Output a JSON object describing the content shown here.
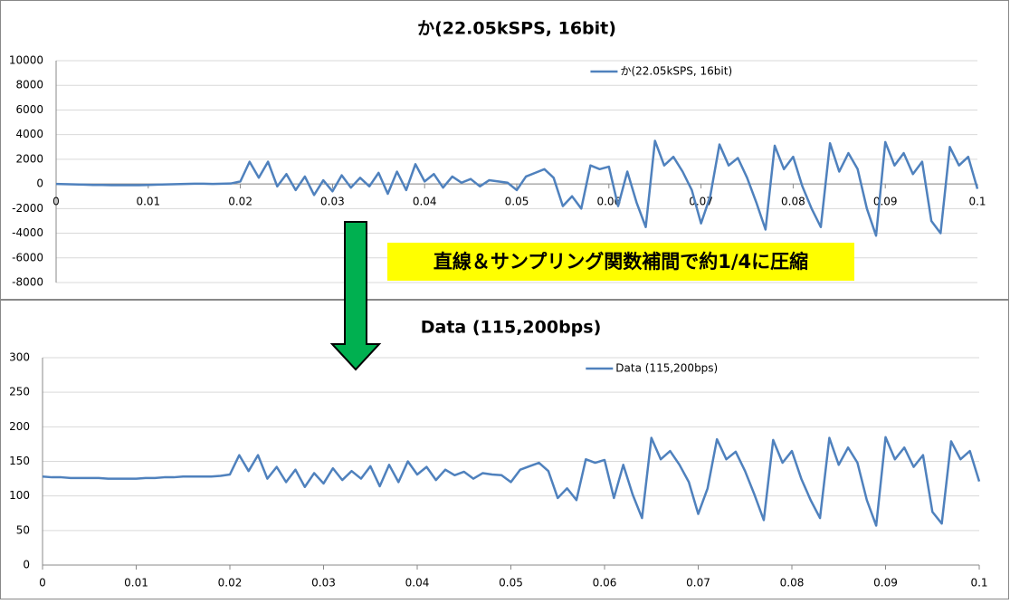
{
  "chart_data": [
    {
      "type": "line",
      "title": "か(22.05kSPS, 16bit)",
      "x": [
        0,
        0.001,
        0.002,
        0.003,
        0.004,
        0.005,
        0.006,
        0.007,
        0.008,
        0.009,
        0.01,
        0.011,
        0.012,
        0.013,
        0.014,
        0.015,
        0.016,
        0.017,
        0.018,
        0.019,
        0.02,
        0.021,
        0.022,
        0.023,
        0.024,
        0.025,
        0.026,
        0.027,
        0.028,
        0.029,
        0.03,
        0.031,
        0.032,
        0.033,
        0.034,
        0.035,
        0.036,
        0.037,
        0.038,
        0.039,
        0.04,
        0.041,
        0.042,
        0.043,
        0.044,
        0.045,
        0.046,
        0.047,
        0.048,
        0.049,
        0.05,
        0.051,
        0.052,
        0.053,
        0.054,
        0.055,
        0.056,
        0.057,
        0.058,
        0.059,
        0.06,
        0.061,
        0.062,
        0.063,
        0.064,
        0.065,
        0.066,
        0.067,
        0.068,
        0.069,
        0.07,
        0.071,
        0.072,
        0.073,
        0.074,
        0.075,
        0.076,
        0.077,
        0.078,
        0.079,
        0.08,
        0.081,
        0.082,
        0.083,
        0.084,
        0.085,
        0.086,
        0.087,
        0.088,
        0.089,
        0.09,
        0.091,
        0.092,
        0.093,
        0.094,
        0.095,
        0.096,
        0.097,
        0.098,
        0.099,
        0.1
      ],
      "series": [
        {
          "name": "か(22.05kSPS, 16bit)",
          "color": "#4f81bd",
          "values": [
            0,
            -20,
            -40,
            -60,
            -80,
            -80,
            -100,
            -100,
            -100,
            -100,
            -80,
            -60,
            -40,
            -20,
            0,
            20,
            20,
            0,
            20,
            40,
            200,
            1800,
            500,
            1800,
            -200,
            800,
            -500,
            600,
            -900,
            300,
            -600,
            700,
            -300,
            500,
            -200,
            900,
            -800,
            1000,
            -500,
            1600,
            200,
            800,
            -300,
            600,
            100,
            400,
            -200,
            300,
            200,
            100,
            -500,
            600,
            900,
            1200,
            500,
            -1800,
            -1000,
            -2000,
            1500,
            1200,
            1400,
            -1800,
            1000,
            -1500,
            -3500,
            3500,
            1500,
            2200,
            1000,
            -500,
            -3200,
            -1000,
            3200,
            1500,
            2100,
            500,
            -1500,
            -3700,
            3100,
            1200,
            2200,
            -200,
            -2000,
            -3500,
            3300,
            1000,
            2500,
            1200,
            -2000,
            -4200,
            3400,
            1500,
            2500,
            800,
            1800,
            -3000,
            -4000,
            3000,
            1500,
            2200,
            -400
          ]
        }
      ],
      "xlim": [
        0,
        0.1
      ],
      "ylim": [
        -8000,
        10000
      ],
      "xticks": [
        0,
        0.01,
        0.02,
        0.03,
        0.04,
        0.05,
        0.06,
        0.07,
        0.08,
        0.09,
        0.1
      ],
      "yticks": [
        -8000,
        -6000,
        -4000,
        -2000,
        0,
        2000,
        4000,
        6000,
        8000,
        10000
      ],
      "grid": true,
      "legend": "top"
    },
    {
      "type": "line",
      "title": "Data (115,200bps)",
      "x": [
        0,
        0.001,
        0.002,
        0.003,
        0.004,
        0.005,
        0.006,
        0.007,
        0.008,
        0.009,
        0.01,
        0.011,
        0.012,
        0.013,
        0.014,
        0.015,
        0.016,
        0.017,
        0.018,
        0.019,
        0.02,
        0.021,
        0.022,
        0.023,
        0.024,
        0.025,
        0.026,
        0.027,
        0.028,
        0.029,
        0.03,
        0.031,
        0.032,
        0.033,
        0.034,
        0.035,
        0.036,
        0.037,
        0.038,
        0.039,
        0.04,
        0.041,
        0.042,
        0.043,
        0.044,
        0.045,
        0.046,
        0.047,
        0.048,
        0.049,
        0.05,
        0.051,
        0.052,
        0.053,
        0.054,
        0.055,
        0.056,
        0.057,
        0.058,
        0.059,
        0.06,
        0.061,
        0.062,
        0.063,
        0.064,
        0.065,
        0.066,
        0.067,
        0.068,
        0.069,
        0.07,
        0.071,
        0.072,
        0.073,
        0.074,
        0.075,
        0.076,
        0.077,
        0.078,
        0.079,
        0.08,
        0.081,
        0.082,
        0.083,
        0.084,
        0.085,
        0.086,
        0.087,
        0.088,
        0.089,
        0.09,
        0.091,
        0.092,
        0.093,
        0.094,
        0.095,
        0.096,
        0.097,
        0.098,
        0.099,
        0.1
      ],
      "series": [
        {
          "name": "Data (115,200bps)",
          "color": "#4f81bd",
          "values": [
            128,
            127,
            127,
            126,
            126,
            126,
            126,
            125,
            125,
            125,
            125,
            126,
            126,
            127,
            127,
            128,
            128,
            128,
            128,
            129,
            131,
            159,
            136,
            159,
            125,
            142,
            120,
            138,
            113,
            133,
            118,
            140,
            123,
            136,
            125,
            143,
            114,
            145,
            120,
            150,
            131,
            142,
            123,
            138,
            130,
            135,
            125,
            133,
            131,
            130,
            120,
            138,
            143,
            148,
            136,
            97,
            111,
            94,
            153,
            148,
            152,
            97,
            145,
            102,
            68,
            184,
            153,
            165,
            145,
            120,
            74,
            111,
            182,
            153,
            164,
            136,
            102,
            65,
            181,
            148,
            165,
            125,
            94,
            68,
            184,
            145,
            170,
            148,
            94,
            57,
            185,
            153,
            170,
            142,
            159,
            77,
            60,
            179,
            153,
            165,
            121
          ]
        }
      ],
      "xlim": [
        0,
        0.1
      ],
      "ylim": [
        0,
        300
      ],
      "xticks": [
        0,
        0.01,
        0.02,
        0.03,
        0.04,
        0.05,
        0.06,
        0.07,
        0.08,
        0.09,
        0.1
      ],
      "yticks": [
        0,
        50,
        100,
        150,
        200,
        250,
        300
      ],
      "grid": true,
      "legend": "top"
    }
  ],
  "annotation": "直線＆サンプリング関数補間で約1/4に圧縮"
}
